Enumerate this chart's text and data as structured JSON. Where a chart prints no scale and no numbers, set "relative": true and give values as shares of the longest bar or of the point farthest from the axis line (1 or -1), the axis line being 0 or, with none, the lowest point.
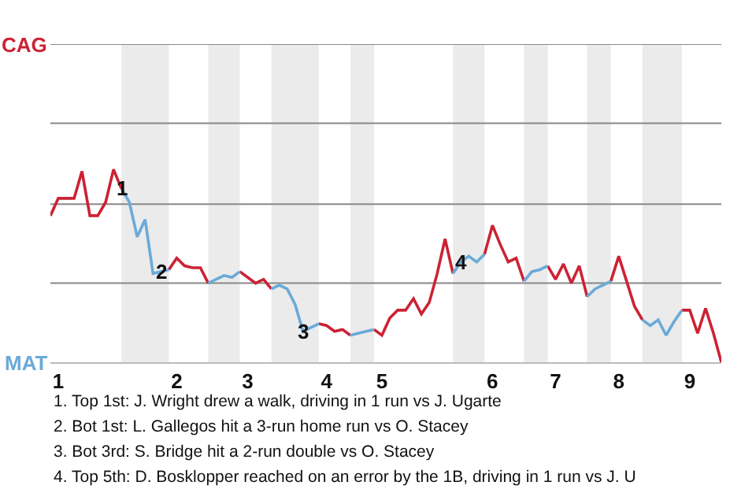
{
  "chart_data": {
    "type": "line",
    "relative": true,
    "ref_lines": [
      {
        "axis": "y",
        "value": 0.41,
        "color": "#888888"
      },
      {
        "axis": "y",
        "value": 0.82,
        "color": "#888888"
      },
      {
        "axis": "y",
        "value": 1.24,
        "color": "#888888"
      },
      {
        "axis": "y",
        "value": 1.65,
        "color": "#888888"
      }
    ],
    "categories": [
      null,
      "1",
      null,
      null,
      null,
      null,
      null,
      null,
      null,
      null,
      null,
      null,
      null,
      null,
      null,
      null,
      "2",
      null,
      null,
      null,
      null,
      null,
      null,
      null,
      null,
      "3",
      null,
      null,
      null,
      null,
      null,
      null,
      null,
      null,
      null,
      "4",
      null,
      null,
      null,
      null,
      null,
      null,
      "5",
      null,
      null,
      null,
      null,
      null,
      null,
      null,
      null,
      null,
      null,
      null,
      null,
      null,
      "6",
      null,
      null,
      null,
      null,
      null,
      null,
      null,
      "7",
      null,
      null,
      null,
      null,
      null,
      null,
      null,
      "8",
      null,
      null,
      null,
      null,
      null,
      null,
      null,
      null,
      "9",
      null,
      null,
      null,
      null
    ],
    "series": [
      {
        "name": "CAG",
        "color": "#cc2233",
        "values": [
          0.76,
          0.85,
          0.85,
          0.85,
          0.99,
          0.76,
          0.76,
          0.83,
          1.0,
          0.9,
          null,
          null,
          null,
          null,
          null,
          0.48,
          0.54,
          0.5,
          0.49,
          0.49,
          0.41,
          null,
          null,
          null,
          0.47,
          0.44,
          0.41,
          0.43,
          0.38,
          null,
          null,
          null,
          null,
          null,
          0.2,
          0.19,
          0.16,
          0.17,
          0.14,
          null,
          null,
          0.17,
          0.14,
          0.23,
          0.27,
          0.27,
          0.33,
          0.25,
          0.31,
          0.46,
          0.64,
          0.46,
          null,
          null,
          null,
          0.56,
          0.71,
          0.61,
          0.52,
          0.54,
          0.42,
          null,
          null,
          0.5,
          0.43,
          0.51,
          0.41,
          0.5,
          0.34,
          null,
          null,
          0.42,
          0.55,
          0.42,
          0.29,
          0.22,
          null,
          null,
          null,
          null,
          0.27,
          0.27,
          0.15,
          0.28,
          0.15,
          0.0
        ],
        "line_style": "solid"
      },
      {
        "name": "MAT",
        "color": "#6aaad8",
        "values": [
          null,
          null,
          null,
          null,
          null,
          null,
          null,
          null,
          null,
          0.9,
          0.83,
          0.65,
          0.74,
          0.46,
          0.47,
          0.48,
          null,
          null,
          null,
          null,
          0.41,
          0.43,
          0.45,
          0.44,
          0.47,
          null,
          null,
          null,
          0.38,
          0.4,
          0.38,
          0.3,
          0.16,
          0.18,
          0.2,
          null,
          null,
          null,
          0.14,
          0.15,
          0.16,
          0.17,
          null,
          null,
          null,
          null,
          null,
          null,
          null,
          null,
          null,
          0.46,
          0.52,
          0.55,
          0.52,
          0.56,
          null,
          null,
          null,
          null,
          0.42,
          0.47,
          0.48,
          0.5,
          null,
          null,
          null,
          null,
          0.34,
          0.38,
          0.4,
          0.42,
          null,
          null,
          null,
          0.22,
          0.19,
          0.22,
          0.14,
          0.21,
          0.27,
          null,
          null,
          null,
          null,
          null
        ],
        "line_style": "solid"
      }
    ],
    "annotations": [
      {
        "text": "1",
        "y": 0.9
      },
      {
        "text": "2",
        "y": 0.47
      },
      {
        "text": "3",
        "y": 0.16
      },
      {
        "text": "4",
        "y": 0.52
      },
      "1. Top 1st: J. Wright drew a walk, driving in 1 run vs J. Ugarte",
      "2. Bot 1st: L. Gallegos hit a 3-run home run vs O. Stacey",
      "3. Bot 3rd: S. Bridge hit a 2-run double vs O. Stacey",
      "4. Top 5th: D. Bosklopper reached on an error by the 1B, driving in 1 run vs J. U"
    ]
  }
}
